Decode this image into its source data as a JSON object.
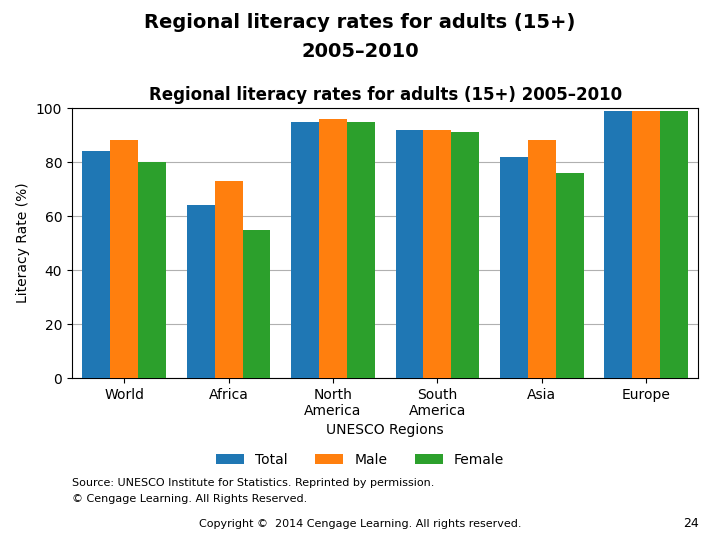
{
  "chart_data": {
    "type": "bar",
    "title": "Regional literacy rates for adults (15+) 2005–2010",
    "xlabel": "UNESCO Regions",
    "ylabel": "Literacy Rate (%)",
    "categories": [
      "World",
      "Africa",
      "North\nAmerica",
      "South\nAmerica",
      "Asia",
      "Europe"
    ],
    "series": [
      {
        "name": "Total",
        "values": [
          84,
          64,
          95,
          92,
          82,
          99
        ]
      },
      {
        "name": "Male",
        "values": [
          88,
          73,
          96,
          92,
          88,
          99
        ]
      },
      {
        "name": "Female",
        "values": [
          80,
          55,
          95,
          91,
          76,
          99
        ]
      }
    ],
    "ylim": [
      0,
      100
    ],
    "yticks": [
      0,
      20,
      40,
      60,
      80,
      100
    ],
    "grid": true,
    "annotations": [
      "Regional literacy rates for adults (15+)",
      "2005–2010",
      "Source: UNESCO Institute for Statistics. Reprinted by permission.",
      "© Cengage Learning. All Rights Reserved.",
      "Copyright ©  2014 Cengage Learning. All rights reserved.",
      "24"
    ]
  }
}
